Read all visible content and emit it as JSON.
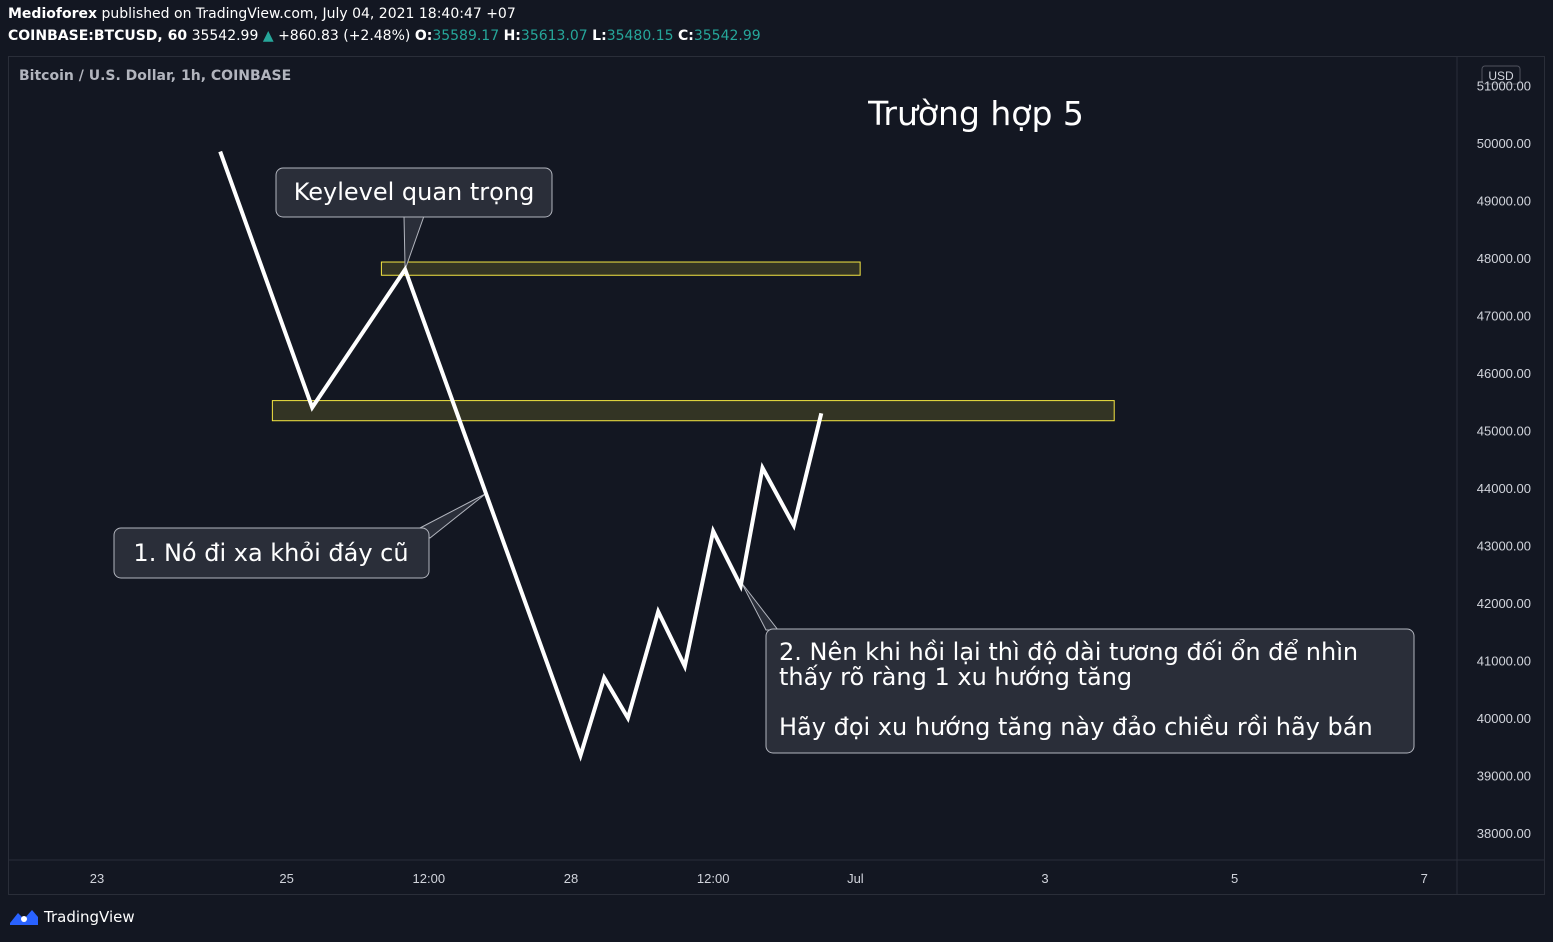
{
  "header": {
    "publisher": "Medioforex",
    "published_text": "published on TradingView.com, July 04, 2021 18:40:47 +07",
    "symbol": "COINBASE:BTCUSD, 60",
    "last_price": "35542.99",
    "change": "+860.83 (+2.48%)",
    "open_label": "O:",
    "open": "35589.17",
    "high_label": "H:",
    "high": "35613.07",
    "low_label": "L:",
    "low": "35480.15",
    "close_label": "C:",
    "close": "35542.99"
  },
  "chart_label": "Bitcoin / U.S. Dollar, 1h, COINBASE",
  "currency": "USD",
  "footer_brand": "TradingView",
  "colors": {
    "background": "#131722",
    "line": "#ffffff",
    "zone_border": "#f5e642",
    "zone_fill": "#3a3a25",
    "up": "#26a69a"
  },
  "chart_data": {
    "type": "line",
    "title": "Trường hợp 5",
    "y_ticks": [
      51000,
      50000,
      49000,
      48000,
      47000,
      46000,
      45000,
      44000,
      43000,
      42000,
      41000,
      40000,
      39000,
      38000
    ],
    "y_tick_labels": [
      "51000.00",
      "50000.00",
      "49000.00",
      "48000.00",
      "47000.00",
      "46000.00",
      "45000.00",
      "44000.00",
      "43000.00",
      "42000.00",
      "41000.00",
      "40000.00",
      "39000.00",
      "38000.00"
    ],
    "ylim": [
      37000,
      51600
    ],
    "x_ticks": [
      {
        "label": "23",
        "pos": 0
      },
      {
        "label": "25",
        "pos": 2
      },
      {
        "label": "12:00",
        "pos": 3.5
      },
      {
        "label": "28",
        "pos": 5
      },
      {
        "label": "12:00",
        "pos": 6.5
      },
      {
        "label": "Jul",
        "pos": 8
      },
      {
        "label": "3",
        "pos": 10
      },
      {
        "label": "5",
        "pos": 12
      },
      {
        "label": "7",
        "pos": 14
      }
    ],
    "xlim": [
      -0.5,
      15.0
    ],
    "series": [
      {
        "points": [
          {
            "x": 1.3,
            "y": 49850
          },
          {
            "x": 2.27,
            "y": 45400
          },
          {
            "x": 3.25,
            "y": 47800
          },
          {
            "x": 5.1,
            "y": 39350
          },
          {
            "x": 5.35,
            "y": 40700
          },
          {
            "x": 5.6,
            "y": 40000
          },
          {
            "x": 5.92,
            "y": 41850
          },
          {
            "x": 6.2,
            "y": 40900
          },
          {
            "x": 6.5,
            "y": 43250
          },
          {
            "x": 6.79,
            "y": 42300
          },
          {
            "x": 7.02,
            "y": 44350
          },
          {
            "x": 7.35,
            "y": 43350
          },
          {
            "x": 7.64,
            "y": 45300
          }
        ]
      }
    ],
    "zones": [
      {
        "x0": 3.0,
        "x1": 8.05,
        "y0": 47700,
        "y1": 47930
      },
      {
        "x0": 1.85,
        "x1": 10.73,
        "y0": 45170,
        "y1": 45520
      }
    ],
    "annotations": [
      {
        "text": "Keylevel quan trọng",
        "anchor_x": 3.25,
        "anchor_y": 47800
      },
      {
        "text": "1. Nó đi xa khỏi đáy cũ",
        "anchor_x": 4.1,
        "anchor_y": 43900
      },
      {
        "text": "2. Nên khi hồi lại thì độ dài tương đối ổn để nhìn thấy rõ ràng 1 xu hướng tăng",
        "anchor_x": 6.8,
        "anchor_y": 42350
      },
      {
        "text": "Hãy đọi xu hướng tăng này đảo chiều rồi hãy bán"
      }
    ]
  }
}
